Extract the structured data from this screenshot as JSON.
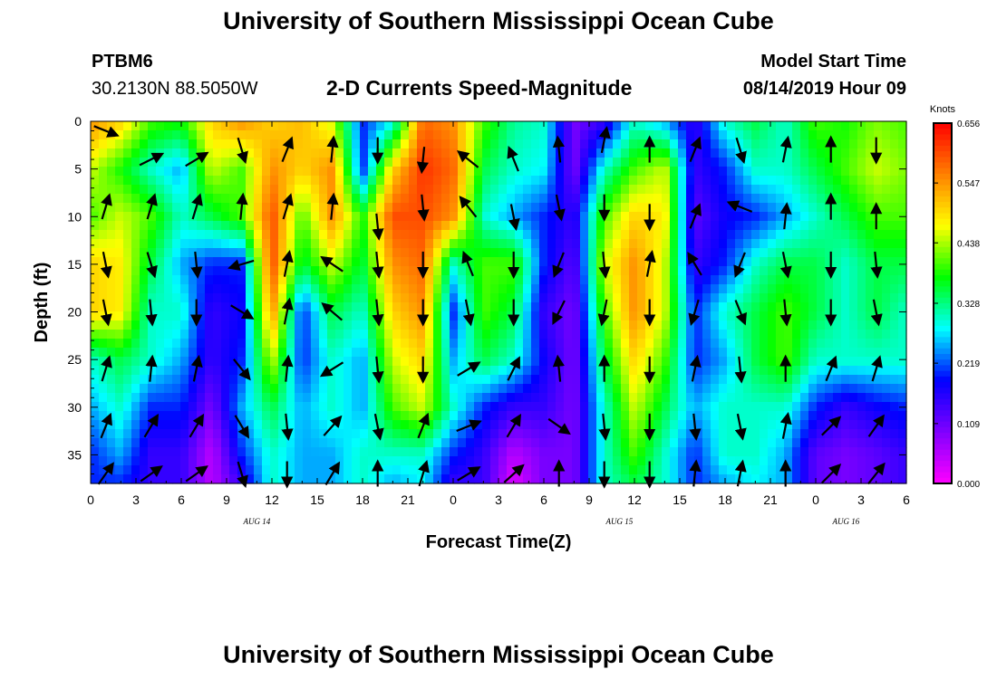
{
  "header": {
    "title_top": "University of Southern Mississippi Ocean Cube",
    "title_bottom": "University of Southern Mississippi Ocean Cube",
    "station_id": "PTBM6",
    "station_location": "30.2130N 88.5050W",
    "subtitle": "2-D Currents Speed-Magnitude",
    "model_start_label": "Model Start Time",
    "model_start_value": "08/14/2019 Hour 09"
  },
  "chart_data": {
    "type": "heatmap",
    "title": "2-D Currents Speed-Magnitude",
    "xlabel": "Forecast Time(Z)",
    "ylabel": "Depth (ft)",
    "x_tick_labels": [
      "0",
      "3",
      "6",
      "9",
      "12",
      "15",
      "18",
      "21",
      "0",
      "3",
      "6",
      "9",
      "12",
      "15",
      "18",
      "21",
      "0",
      "3",
      "6"
    ],
    "x_range_hours": [
      0,
      54
    ],
    "date_labels": [
      {
        "label": "AUG 14",
        "hour": 11
      },
      {
        "label": "AUG 15",
        "hour": 35
      },
      {
        "label": "AUG 16",
        "hour": 50
      }
    ],
    "y_tick_labels": [
      "0",
      "5",
      "10",
      "15",
      "20",
      "25",
      "30",
      "35"
    ],
    "ylim": [
      0,
      38
    ],
    "y_inverted": true,
    "colorbar": {
      "unit_label": "Knots",
      "tick_labels": [
        "0.656",
        "0.547",
        "0.438",
        "0.328",
        "0.219",
        "0.109",
        "0.000"
      ],
      "range": [
        0.0,
        0.656
      ],
      "colors": [
        "#ff00ff",
        "#8000ff",
        "#0000ff",
        "#00ffff",
        "#00ff00",
        "#ffff00",
        "#ff8000",
        "#ff0000"
      ]
    },
    "grid_hours": [
      0,
      2,
      4,
      6,
      8,
      10,
      12,
      14,
      16,
      18,
      20,
      22,
      24,
      26,
      28,
      30,
      32,
      34,
      36,
      38,
      40,
      42,
      44,
      46,
      48,
      50,
      52,
      54
    ],
    "grid_depths": [
      0,
      5,
      10,
      15,
      20,
      25,
      30,
      35,
      38
    ],
    "speed_grid": [
      [
        0.55,
        0.5,
        0.4,
        0.38,
        0.5,
        0.55,
        0.5,
        0.52,
        0.45,
        0.2,
        0.28,
        0.58,
        0.55,
        0.4,
        0.32,
        0.3,
        0.1,
        0.15,
        0.3,
        0.25,
        0.15,
        0.3,
        0.35,
        0.3,
        0.4,
        0.38,
        0.42,
        0.4
      ],
      [
        0.45,
        0.38,
        0.3,
        0.25,
        0.45,
        0.4,
        0.55,
        0.5,
        0.55,
        0.2,
        0.5,
        0.62,
        0.58,
        0.35,
        0.3,
        0.28,
        0.1,
        0.3,
        0.4,
        0.45,
        0.15,
        0.2,
        0.3,
        0.3,
        0.35,
        0.4,
        0.45,
        0.42
      ],
      [
        0.4,
        0.45,
        0.4,
        0.3,
        0.35,
        0.4,
        0.6,
        0.4,
        0.55,
        0.38,
        0.6,
        0.6,
        0.55,
        0.3,
        0.25,
        0.2,
        0.15,
        0.4,
        0.5,
        0.48,
        0.12,
        0.18,
        0.2,
        0.25,
        0.3,
        0.35,
        0.4,
        0.4
      ],
      [
        0.5,
        0.48,
        0.35,
        0.25,
        0.2,
        0.2,
        0.6,
        0.35,
        0.45,
        0.35,
        0.55,
        0.58,
        0.3,
        0.4,
        0.4,
        0.2,
        0.12,
        0.45,
        0.55,
        0.45,
        0.15,
        0.2,
        0.3,
        0.35,
        0.35,
        0.3,
        0.35,
        0.35
      ],
      [
        0.5,
        0.48,
        0.3,
        0.3,
        0.15,
        0.18,
        0.55,
        0.2,
        0.35,
        0.3,
        0.5,
        0.55,
        0.2,
        0.4,
        0.35,
        0.15,
        0.1,
        0.4,
        0.55,
        0.45,
        0.2,
        0.3,
        0.35,
        0.4,
        0.35,
        0.3,
        0.35,
        0.3
      ],
      [
        0.3,
        0.35,
        0.3,
        0.25,
        0.15,
        0.2,
        0.45,
        0.2,
        0.3,
        0.25,
        0.45,
        0.5,
        0.25,
        0.35,
        0.3,
        0.18,
        0.1,
        0.35,
        0.5,
        0.4,
        0.2,
        0.25,
        0.35,
        0.4,
        0.3,
        0.3,
        0.3,
        0.3
      ],
      [
        0.25,
        0.3,
        0.2,
        0.2,
        0.1,
        0.25,
        0.35,
        0.25,
        0.3,
        0.25,
        0.4,
        0.45,
        0.3,
        0.2,
        0.15,
        0.15,
        0.1,
        0.3,
        0.45,
        0.35,
        0.25,
        0.3,
        0.3,
        0.3,
        0.2,
        0.15,
        0.18,
        0.2
      ],
      [
        0.2,
        0.25,
        0.15,
        0.15,
        0.05,
        0.2,
        0.3,
        0.25,
        0.25,
        0.3,
        0.3,
        0.3,
        0.2,
        0.15,
        0.05,
        0.1,
        0.1,
        0.3,
        0.4,
        0.3,
        0.2,
        0.3,
        0.3,
        0.25,
        0.12,
        0.1,
        0.12,
        0.15
      ],
      [
        0.2,
        0.2,
        0.15,
        0.15,
        0.05,
        0.15,
        0.3,
        0.25,
        0.25,
        0.3,
        0.25,
        0.28,
        0.15,
        0.15,
        0.02,
        0.1,
        0.1,
        0.3,
        0.35,
        0.3,
        0.2,
        0.25,
        0.28,
        0.25,
        0.12,
        0.1,
        0.12,
        0.15
      ]
    ],
    "arrows": [
      {
        "hour": 0,
        "depth": 0,
        "dx": 1,
        "dy": 0.4
      },
      {
        "hour": 3,
        "depth": 3,
        "dx": 1,
        "dy": -0.5
      },
      {
        "hour": 6,
        "depth": 3,
        "dx": 1,
        "dy": -0.6
      },
      {
        "hour": 9,
        "depth": 2,
        "dx": 0.3,
        "dy": 1
      },
      {
        "hour": 12,
        "depth": 2,
        "dx": 0.4,
        "dy": -1
      },
      {
        "hour": 15,
        "depth": 2,
        "dx": 0.1,
        "dy": -1
      },
      {
        "hour": 18,
        "depth": 2,
        "dx": 0,
        "dy": 1
      },
      {
        "hour": 21,
        "depth": 3,
        "dx": -0.1,
        "dy": 1
      },
      {
        "hour": 24,
        "depth": 3,
        "dx": -1,
        "dy": -0.8
      },
      {
        "hour": 27,
        "depth": 3,
        "dx": -0.4,
        "dy": -1
      },
      {
        "hour": 30,
        "depth": 2,
        "dx": -0.1,
        "dy": -1
      },
      {
        "hour": 33,
        "depth": 1,
        "dx": 0.2,
        "dy": -1
      },
      {
        "hour": 36,
        "depth": 2,
        "dx": 0,
        "dy": -1
      },
      {
        "hour": 39,
        "depth": 2,
        "dx": 0.4,
        "dy": -1
      },
      {
        "hour": 42,
        "depth": 2,
        "dx": 0.3,
        "dy": 1
      },
      {
        "hour": 45,
        "depth": 2,
        "dx": 0.2,
        "dy": -1
      },
      {
        "hour": 48,
        "depth": 2,
        "dx": 0,
        "dy": -1
      },
      {
        "hour": 51,
        "depth": 2,
        "dx": 0,
        "dy": 1
      },
      {
        "hour": 0,
        "depth": 8,
        "dx": 0.3,
        "dy": -1
      },
      {
        "hour": 3,
        "depth": 8,
        "dx": 0.3,
        "dy": -1
      },
      {
        "hour": 6,
        "depth": 8,
        "dx": 0.3,
        "dy": -1
      },
      {
        "hour": 9,
        "depth": 8,
        "dx": 0.1,
        "dy": -1
      },
      {
        "hour": 12,
        "depth": 8,
        "dx": 0.3,
        "dy": -1
      },
      {
        "hour": 15,
        "depth": 8,
        "dx": 0.1,
        "dy": -1
      },
      {
        "hour": 18,
        "depth": 10,
        "dx": 0.1,
        "dy": 1
      },
      {
        "hour": 21,
        "depth": 8,
        "dx": 0.1,
        "dy": 1
      },
      {
        "hour": 24,
        "depth": 8,
        "dx": -0.8,
        "dy": -1
      },
      {
        "hour": 27,
        "depth": 9,
        "dx": 0.2,
        "dy": 1
      },
      {
        "hour": 30,
        "depth": 8,
        "dx": 0.2,
        "dy": 1
      },
      {
        "hour": 33,
        "depth": 8,
        "dx": 0,
        "dy": 1
      },
      {
        "hour": 36,
        "depth": 9,
        "dx": 0,
        "dy": 1
      },
      {
        "hour": 39,
        "depth": 9,
        "dx": 0.4,
        "dy": -1
      },
      {
        "hour": 42,
        "depth": 8,
        "dx": -1,
        "dy": -0.4
      },
      {
        "hour": 45,
        "depth": 9,
        "dx": 0.1,
        "dy": -1
      },
      {
        "hour": 48,
        "depth": 8,
        "dx": 0,
        "dy": -1
      },
      {
        "hour": 51,
        "depth": 9,
        "dx": 0,
        "dy": -1
      },
      {
        "hour": 0,
        "depth": 14,
        "dx": 0.2,
        "dy": 1
      },
      {
        "hour": 3,
        "depth": 14,
        "dx": 0.3,
        "dy": 1
      },
      {
        "hour": 6,
        "depth": 14,
        "dx": 0.1,
        "dy": 1
      },
      {
        "hour": 9,
        "depth": 14,
        "dx": -1,
        "dy": 0.3
      },
      {
        "hour": 12,
        "depth": 14,
        "dx": 0.2,
        "dy": -1
      },
      {
        "hour": 15,
        "depth": 14,
        "dx": -0.9,
        "dy": -0.6
      },
      {
        "hour": 18,
        "depth": 14,
        "dx": 0.1,
        "dy": 1
      },
      {
        "hour": 21,
        "depth": 14,
        "dx": 0,
        "dy": 1
      },
      {
        "hour": 24,
        "depth": 14,
        "dx": -0.4,
        "dy": -1
      },
      {
        "hour": 27,
        "depth": 14,
        "dx": 0,
        "dy": 1
      },
      {
        "hour": 30,
        "depth": 14,
        "dx": -0.4,
        "dy": 1
      },
      {
        "hour": 33,
        "depth": 14,
        "dx": 0.1,
        "dy": 1
      },
      {
        "hour": 36,
        "depth": 14,
        "dx": 0.2,
        "dy": -1
      },
      {
        "hour": 39,
        "depth": 14,
        "dx": -0.6,
        "dy": -1
      },
      {
        "hour": 42,
        "depth": 14,
        "dx": -0.4,
        "dy": 1
      },
      {
        "hour": 45,
        "depth": 14,
        "dx": 0.2,
        "dy": 1
      },
      {
        "hour": 48,
        "depth": 14,
        "dx": 0,
        "dy": 1
      },
      {
        "hour": 51,
        "depth": 14,
        "dx": 0.1,
        "dy": 1
      },
      {
        "hour": 0,
        "depth": 19,
        "dx": 0.2,
        "dy": 1
      },
      {
        "hour": 3,
        "depth": 19,
        "dx": 0.1,
        "dy": 1
      },
      {
        "hour": 6,
        "depth": 19,
        "dx": 0,
        "dy": 1
      },
      {
        "hour": 9,
        "depth": 19,
        "dx": 1,
        "dy": 0.6
      },
      {
        "hour": 12,
        "depth": 19,
        "dx": 0.2,
        "dy": -1
      },
      {
        "hour": 15,
        "depth": 19,
        "dx": -0.7,
        "dy": -0.6
      },
      {
        "hour": 18,
        "depth": 19,
        "dx": 0.1,
        "dy": 1
      },
      {
        "hour": 21,
        "depth": 19,
        "dx": 0,
        "dy": 1
      },
      {
        "hour": 24,
        "depth": 19,
        "dx": 0.2,
        "dy": 1
      },
      {
        "hour": 27,
        "depth": 19,
        "dx": 0,
        "dy": 1
      },
      {
        "hour": 30,
        "depth": 19,
        "dx": -0.5,
        "dy": 1
      },
      {
        "hour": 33,
        "depth": 19,
        "dx": -0.2,
        "dy": 1
      },
      {
        "hour": 36,
        "depth": 19,
        "dx": 0,
        "dy": 1
      },
      {
        "hour": 39,
        "depth": 19,
        "dx": -0.3,
        "dy": 1
      },
      {
        "hour": 42,
        "depth": 19,
        "dx": 0.4,
        "dy": 1
      },
      {
        "hour": 45,
        "depth": 19,
        "dx": 0.1,
        "dy": 1
      },
      {
        "hour": 48,
        "depth": 19,
        "dx": 0,
        "dy": 1
      },
      {
        "hour": 51,
        "depth": 19,
        "dx": 0.2,
        "dy": 1
      },
      {
        "hour": 0,
        "depth": 25,
        "dx": 0.3,
        "dy": -1
      },
      {
        "hour": 3,
        "depth": 25,
        "dx": 0.1,
        "dy": -1
      },
      {
        "hour": 6,
        "depth": 25,
        "dx": 0.2,
        "dy": -1
      },
      {
        "hour": 9,
        "depth": 25,
        "dx": 0.8,
        "dy": 1
      },
      {
        "hour": 12,
        "depth": 25,
        "dx": 0.1,
        "dy": -1
      },
      {
        "hour": 15,
        "depth": 25,
        "dx": -0.8,
        "dy": 0.5
      },
      {
        "hour": 18,
        "depth": 25,
        "dx": 0.1,
        "dy": 1
      },
      {
        "hour": 21,
        "depth": 25,
        "dx": 0,
        "dy": 1
      },
      {
        "hour": 24,
        "depth": 25,
        "dx": 1,
        "dy": -0.6
      },
      {
        "hour": 27,
        "depth": 25,
        "dx": 0.5,
        "dy": -1
      },
      {
        "hour": 30,
        "depth": 25,
        "dx": -0.1,
        "dy": -1
      },
      {
        "hour": 33,
        "depth": 25,
        "dx": 0,
        "dy": -1
      },
      {
        "hour": 36,
        "depth": 25,
        "dx": 0,
        "dy": 1
      },
      {
        "hour": 39,
        "depth": 25,
        "dx": 0.2,
        "dy": -1
      },
      {
        "hour": 42,
        "depth": 25,
        "dx": 0.1,
        "dy": 1
      },
      {
        "hour": 45,
        "depth": 25,
        "dx": 0,
        "dy": -1
      },
      {
        "hour": 48,
        "depth": 25,
        "dx": 0.4,
        "dy": -1
      },
      {
        "hour": 51,
        "depth": 25,
        "dx": 0.3,
        "dy": -1
      },
      {
        "hour": 0,
        "depth": 31,
        "dx": 0.4,
        "dy": -1
      },
      {
        "hour": 3,
        "depth": 31,
        "dx": 0.6,
        "dy": -1
      },
      {
        "hour": 6,
        "depth": 31,
        "dx": 0.6,
        "dy": -1
      },
      {
        "hour": 9,
        "depth": 31,
        "dx": 0.6,
        "dy": 1
      },
      {
        "hour": 12,
        "depth": 31,
        "dx": 0.1,
        "dy": 1
      },
      {
        "hour": 15,
        "depth": 31,
        "dx": 0.9,
        "dy": -1
      },
      {
        "hour": 18,
        "depth": 31,
        "dx": 0.2,
        "dy": 1
      },
      {
        "hour": 21,
        "depth": 31,
        "dx": 0.4,
        "dy": -1
      },
      {
        "hour": 24,
        "depth": 31,
        "dx": 1,
        "dy": -0.4
      },
      {
        "hour": 27,
        "depth": 31,
        "dx": 0.6,
        "dy": -1
      },
      {
        "hour": 30,
        "depth": 31,
        "dx": 1,
        "dy": 0.7
      },
      {
        "hour": 33,
        "depth": 31,
        "dx": 0.1,
        "dy": 1
      },
      {
        "hour": 36,
        "depth": 31,
        "dx": 0,
        "dy": 1
      },
      {
        "hour": 39,
        "depth": 31,
        "dx": 0.1,
        "dy": 1
      },
      {
        "hour": 42,
        "depth": 31,
        "dx": 0.2,
        "dy": 1
      },
      {
        "hour": 45,
        "depth": 31,
        "dx": 0.2,
        "dy": -1
      },
      {
        "hour": 48,
        "depth": 31,
        "dx": 1,
        "dy": -1
      },
      {
        "hour": 51,
        "depth": 31,
        "dx": 0.7,
        "dy": -1
      },
      {
        "hour": 0,
        "depth": 36,
        "dx": 0.7,
        "dy": -1
      },
      {
        "hour": 3,
        "depth": 36,
        "dx": 1,
        "dy": -0.7
      },
      {
        "hour": 6,
        "depth": 36,
        "dx": 1,
        "dy": -0.7
      },
      {
        "hour": 9,
        "depth": 36,
        "dx": 0.3,
        "dy": 1
      },
      {
        "hour": 12,
        "depth": 36,
        "dx": 0,
        "dy": 1
      },
      {
        "hour": 15,
        "depth": 36,
        "dx": 0.6,
        "dy": -1
      },
      {
        "hour": 18,
        "depth": 36,
        "dx": 0,
        "dy": -1
      },
      {
        "hour": 21,
        "depth": 36,
        "dx": 0.3,
        "dy": -1
      },
      {
        "hour": 24,
        "depth": 36,
        "dx": 1,
        "dy": -0.6
      },
      {
        "hour": 27,
        "depth": 36,
        "dx": 1,
        "dy": -0.9
      },
      {
        "hour": 30,
        "depth": 36,
        "dx": 0,
        "dy": -1
      },
      {
        "hour": 33,
        "depth": 36,
        "dx": 0,
        "dy": 1
      },
      {
        "hour": 36,
        "depth": 36,
        "dx": 0,
        "dy": 1
      },
      {
        "hour": 39,
        "depth": 36,
        "dx": 0.1,
        "dy": -1
      },
      {
        "hour": 42,
        "depth": 36,
        "dx": 0.2,
        "dy": -1
      },
      {
        "hour": 45,
        "depth": 36,
        "dx": 0,
        "dy": -1
      },
      {
        "hour": 48,
        "depth": 36,
        "dx": 1,
        "dy": -1
      },
      {
        "hour": 51,
        "depth": 36,
        "dx": 0.8,
        "dy": -1
      }
    ]
  }
}
